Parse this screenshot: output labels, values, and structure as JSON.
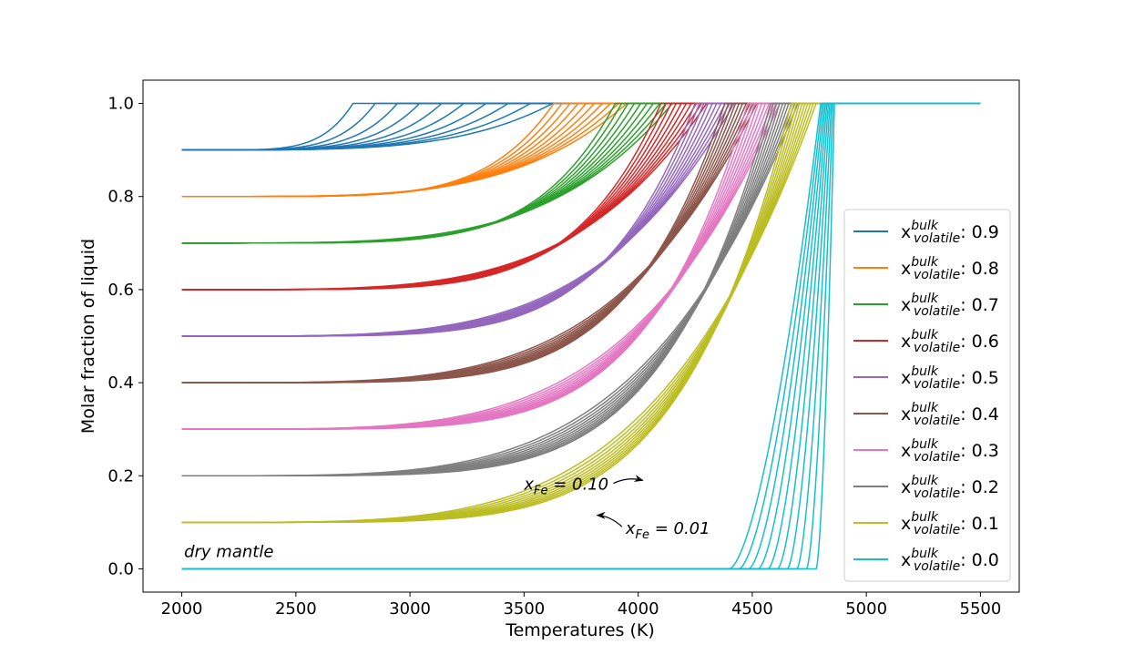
{
  "chart_data": {
    "type": "line",
    "xlabel": "Temperatures (K)",
    "ylabel": "Molar fraction of liquid",
    "xlim": [
      1830,
      5670
    ],
    "ylim": [
      -0.05,
      1.05
    ],
    "xticks": [
      "2000",
      "2500",
      "3000",
      "3500",
      "4000",
      "4500",
      "5000",
      "5500"
    ],
    "yticks": [
      "0.0",
      "0.2",
      "0.4",
      "0.6",
      "0.8",
      "1.0"
    ],
    "legend_position": "right",
    "colors": [
      "#1f77b4",
      "#ff7f0e",
      "#2ca02c",
      "#d62728",
      "#9467bd",
      "#8c564b",
      "#e377c2",
      "#7f7f7f",
      "#bcbd22",
      "#17becf"
    ],
    "legend_prefix": "x",
    "legend_sup": "bulk",
    "legend_sub": "volatile",
    "series": [
      {
        "name": "0.9",
        "start": 0.9,
        "full_liquid_T_range": [
          2750,
          3625
        ],
        "curves": 10
      },
      {
        "name": "0.8",
        "start": 0.8,
        "full_liquid_T_range": [
          3630,
          3950
        ],
        "curves": 10
      },
      {
        "name": "0.7",
        "start": 0.7,
        "full_liquid_T_range": [
          3900,
          4150
        ],
        "curves": 10
      },
      {
        "name": "0.6",
        "start": 0.6,
        "full_liquid_T_range": [
          4100,
          4300
        ],
        "curves": 10
      },
      {
        "name": "0.5",
        "start": 0.5,
        "full_liquid_T_range": [
          4250,
          4420
        ],
        "curves": 10
      },
      {
        "name": "0.4",
        "start": 0.4,
        "full_liquid_T_range": [
          4380,
          4520
        ],
        "curves": 10
      },
      {
        "name": "0.3",
        "start": 0.3,
        "full_liquid_T_range": [
          4480,
          4620
        ],
        "curves": 10
      },
      {
        "name": "0.2",
        "start": 0.2,
        "full_liquid_T_range": [
          4580,
          4700
        ],
        "curves": 10
      },
      {
        "name": "0.1",
        "start": 0.1,
        "full_liquid_T_range": [
          4670,
          4780
        ],
        "curves": 10
      },
      {
        "name": "0.0",
        "start": 0.0,
        "melt_T_start": [
          4400,
          4780
        ],
        "full_liquid_T_range": [
          4800,
          4860
        ],
        "curves": 10
      }
    ],
    "max_T": 5500,
    "annotations": [
      {
        "text": "dry mantle",
        "x": 2010,
        "y": 0.025
      },
      {
        "text_var": "x",
        "text_sub": "Fe",
        "text_val": " = 0.10",
        "x": 3500,
        "y": 0.17,
        "arrow_to": [
          4020,
          0.19
        ]
      },
      {
        "text_var": "x",
        "text_sub": "Fe",
        "text_val": " = 0.01",
        "x": 3945,
        "y": 0.075,
        "arrow_to": [
          3820,
          0.115
        ]
      }
    ]
  }
}
